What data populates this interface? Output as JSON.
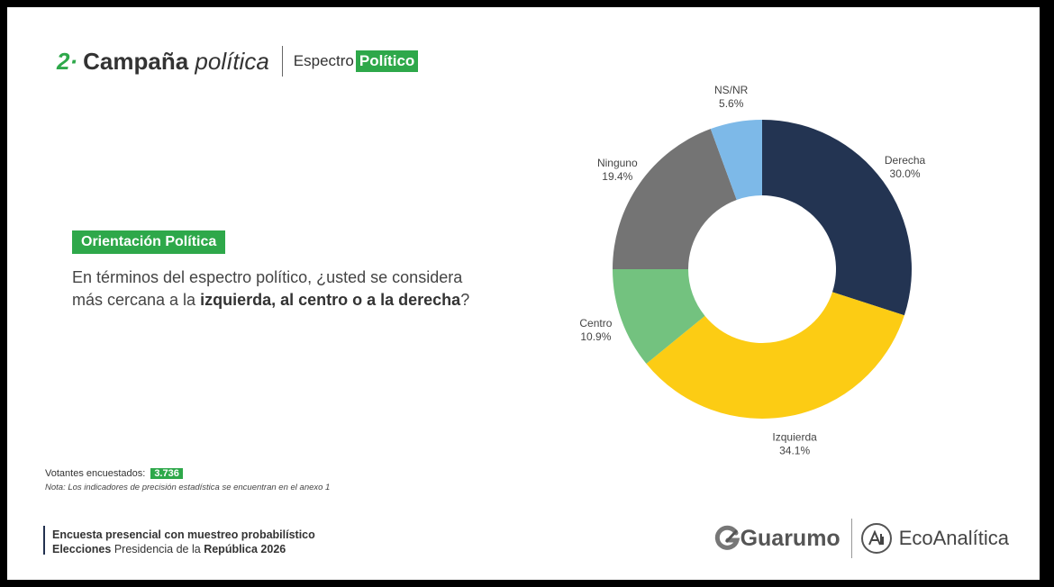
{
  "header": {
    "section_number": "2·",
    "title_bold": "Campaña",
    "title_italic": "política",
    "subtitle_plain": "Espectro",
    "subtitle_highlight": "Político"
  },
  "question": {
    "badge": "Orientación Política",
    "text_start": "En términos del espectro político, ¿usted se considera más cercana a la",
    "text_bold": "izquierda, al centro o a la derecha",
    "text_end": "?"
  },
  "colors": {
    "accent_green": "#2ea84a",
    "Derecha": "#233452",
    "Izquierda": "#fccc14",
    "Centro": "#73c27f",
    "Ninguno": "#747474",
    "NS/NR": "#7db9e8"
  },
  "chart_data": {
    "type": "pie",
    "variant": "donut",
    "categories": [
      "Derecha",
      "Izquierda",
      "Centro",
      "Ninguno",
      "NS/NR"
    ],
    "values": [
      30.0,
      34.1,
      10.9,
      19.4,
      5.6
    ],
    "value_labels": [
      "30.0%",
      "34.1%",
      "10.9%",
      "19.4%",
      "5.6%"
    ],
    "start_angle_deg": 0,
    "direction": "clockwise"
  },
  "sample": {
    "label": "Votantes encuestados:",
    "value": "3.736",
    "note": "Nota: Los indicadores de precisión estadística se encuentran en el anexo 1"
  },
  "footer": {
    "line1": "Encuesta presencial con muestreo probabilístico",
    "line2_bold1": "Elecciones",
    "line2_normal": "Presidencia de la",
    "line2_bold2": "República 2026"
  },
  "logos": {
    "guarumo": "Guarumo",
    "guarumo_icon": "guarumo-logo-icon",
    "ecoanalitica": "EcoAnalítica",
    "ecoanalitica_icon": "ecoanalitica-logo-icon"
  }
}
